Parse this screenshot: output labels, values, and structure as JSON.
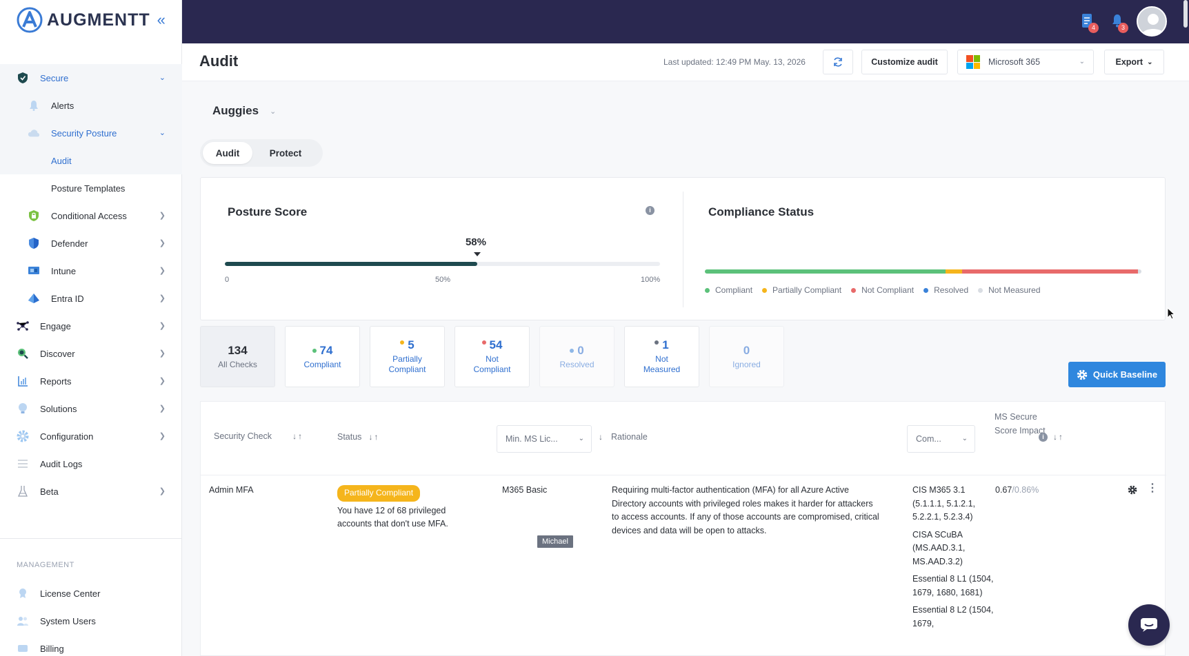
{
  "app": {
    "brand": "AUGMENTT",
    "collapse_icon": "«"
  },
  "colors": {
    "topbar": "#2a2850",
    "accent": "#2f6fcf",
    "primary_button": "#2f87de",
    "posture_fill": "#1e4a4f",
    "compliant": "#5cc17a",
    "partial": "#f5b51c",
    "not_compliant": "#e86a6a",
    "resolved": "#3a82d9",
    "not_measured": "#d9dde3"
  },
  "sidebar": {
    "items": [
      {
        "label": "Secure",
        "icon": "shield-icon",
        "expanded": true
      },
      {
        "label": "Alerts",
        "icon": "bell-icon"
      },
      {
        "label": "Security Posture",
        "icon": "cloud-icon",
        "expanded": true
      },
      {
        "label": "Audit"
      },
      {
        "label": "Posture Templates"
      },
      {
        "label": "Conditional Access",
        "icon": "lock-shield-icon"
      },
      {
        "label": "Defender",
        "icon": "defender-shield-icon"
      },
      {
        "label": "Intune",
        "icon": "intune-icon"
      },
      {
        "label": "Entra ID",
        "icon": "entra-icon"
      },
      {
        "label": "Engage",
        "icon": "network-icon"
      },
      {
        "label": "Discover",
        "icon": "search-icon"
      },
      {
        "label": "Reports",
        "icon": "report-icon"
      },
      {
        "label": "Solutions",
        "icon": "lightbulb-icon"
      },
      {
        "label": "Configuration",
        "icon": "gear-icon"
      },
      {
        "label": "Audit Logs",
        "icon": "list-icon"
      },
      {
        "label": "Beta",
        "icon": "flask-icon"
      }
    ],
    "management_heading": "MANAGEMENT",
    "management": [
      {
        "label": "License Center",
        "icon": "license-icon"
      },
      {
        "label": "System Users",
        "icon": "users-icon"
      },
      {
        "label": "Billing",
        "icon": "billing-icon"
      }
    ]
  },
  "topbar": {
    "tasks_badge": "4",
    "notifications_badge": "3"
  },
  "header": {
    "title": "Audit",
    "last_updated": "Last updated: 12:49 PM May. 13, 2026",
    "customize_label": "Customize audit",
    "tenant_select": "Microsoft 365",
    "export_label": "Export"
  },
  "org": {
    "name": "Auggies"
  },
  "tabs": [
    {
      "label": "Audit",
      "active": true
    },
    {
      "label": "Protect",
      "active": false
    }
  ],
  "posture": {
    "title": "Posture Score",
    "score_label": "58%",
    "score_fraction": 0.58,
    "ticks": [
      "0",
      "50%",
      "100%"
    ]
  },
  "compliance": {
    "title": "Compliance Status",
    "segments": [
      {
        "name": "Compliant",
        "fraction": 0.552,
        "color": "#5cc17a"
      },
      {
        "name": "Partially Compliant",
        "fraction": 0.037,
        "color": "#f5b51c"
      },
      {
        "name": "Not Compliant",
        "fraction": 0.403,
        "color": "#e86a6a"
      },
      {
        "name": "Resolved",
        "fraction": 0.0,
        "color": "#3a82d9"
      },
      {
        "name": "Not Measured",
        "fraction": 0.008,
        "color": "#d9dde3"
      }
    ],
    "legend": [
      "Compliant",
      "Partially Compliant",
      "Not Compliant",
      "Resolved",
      "Not Measured"
    ]
  },
  "stats": [
    {
      "value": "134",
      "label": "All Checks"
    },
    {
      "value": "74",
      "label": "Compliant",
      "color": "#5cc17a"
    },
    {
      "value": "5",
      "label": "Partially Compliant",
      "color": "#f5b51c"
    },
    {
      "value": "54",
      "label": "Not Compliant",
      "color": "#e86a6a"
    },
    {
      "value": "0",
      "label": "Resolved",
      "color": "#3a82d9"
    },
    {
      "value": "1",
      "label": "Not Measured",
      "color": "#6b7280"
    },
    {
      "value": "0",
      "label": "Ignored"
    }
  ],
  "quick_baseline_label": "Quick Baseline",
  "table": {
    "columns": {
      "security_check": "Security Check",
      "status": "Status",
      "min_license": "Min. MS Lic...",
      "rationale": "Rationale",
      "compliance": "Com...",
      "score_impact": "MS Secure Score Impact"
    },
    "rows": [
      {
        "check": "Admin MFA",
        "status": "Partially Compliant",
        "status_detail": "You have 12 of 68 privileged accounts that don't use MFA.",
        "license": "M365 Basic",
        "rationale": "Requiring multi-factor authentication (MFA) for all Azure Active Directory accounts with privileged roles makes it harder for attackers to access accounts. If any of those accounts are compromised, critical devices and data will be open to attacks.",
        "compliance": [
          "CIS M365 3.1 (5.1.1.1, 5.1.2.1, 5.2.2.1, 5.2.3.4)",
          "CISA SCuBA (MS.AAD.3.1, MS.AAD.3.2)",
          "Essential 8 L1 (1504, 1679, 1680, 1681)",
          "Essential 8 L2 (1504, 1679,"
        ],
        "impact": "0.67",
        "impact_max": "/0.86%"
      }
    ]
  },
  "tooltip": "Michael"
}
